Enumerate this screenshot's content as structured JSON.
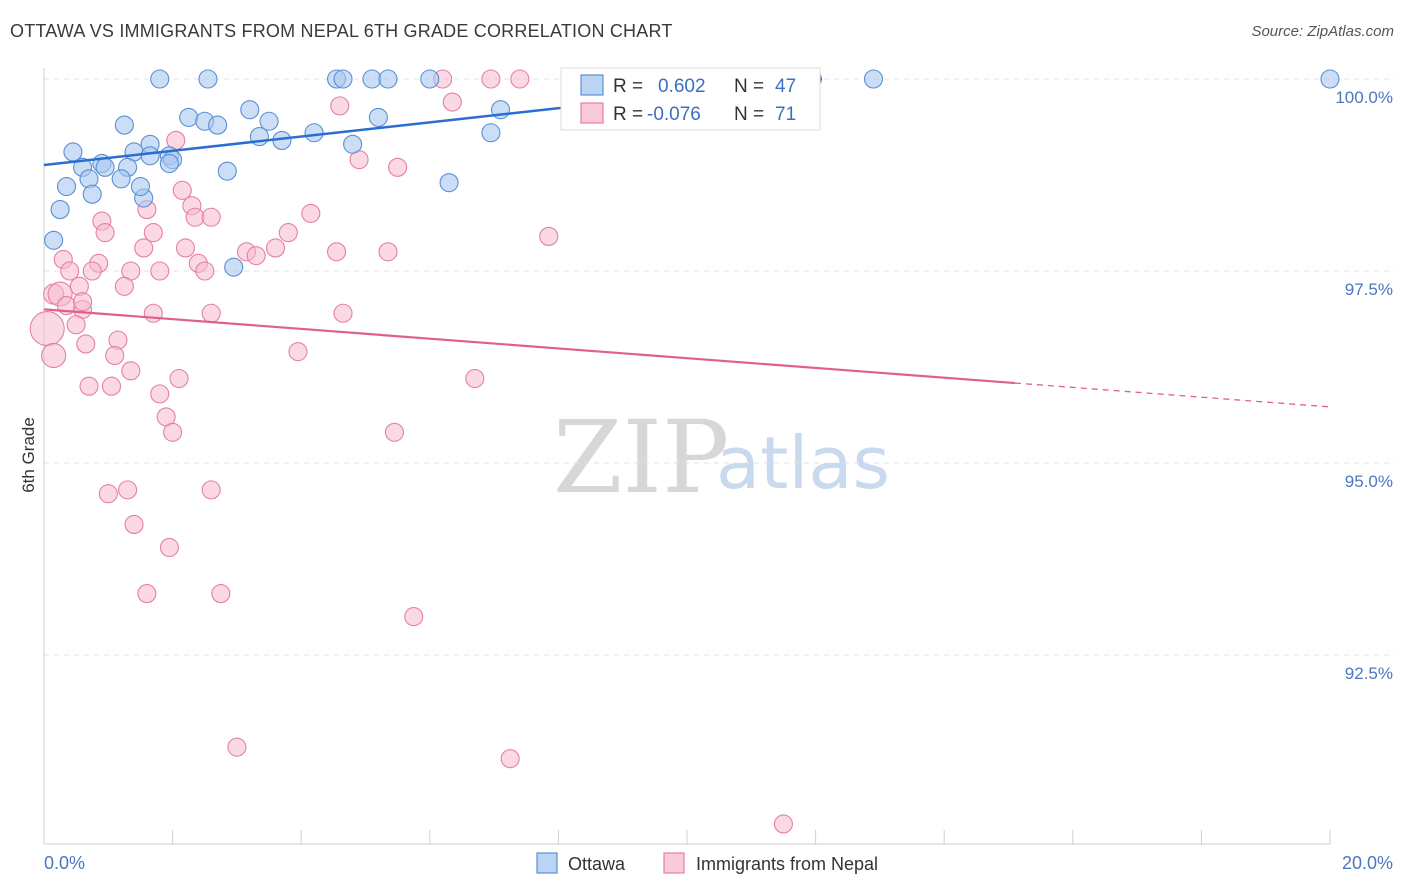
{
  "header": {
    "title": "OTTAWA VS IMMIGRANTS FROM NEPAL 6TH GRADE CORRELATION CHART",
    "source": "Source: ZipAtlas.com"
  },
  "watermark": {
    "zip": "ZIP",
    "atlas": "atlas"
  },
  "colors": {
    "blue_fill": "#a9c8ef",
    "blue_stroke": "#5a8fd6",
    "blue_line": "#2a6fd0",
    "pink_fill": "#f5b9cc",
    "pink_stroke": "#e680a3",
    "pink_line": "#e0608a",
    "grid": "#e2e2e2",
    "axis_text": "#4a78c0"
  },
  "legend": {
    "r_label": "R =",
    "n_label": "N =",
    "rows": [
      {
        "series": "Ottawa",
        "r": "0.602",
        "n": "47"
      },
      {
        "series": "Immigrants from Nepal",
        "r": "-0.076",
        "n": "71"
      }
    ]
  },
  "chart_data": {
    "type": "scatter",
    "title": "OTTAWA VS IMMIGRANTS FROM NEPAL 6TH GRADE CORRELATION CHART",
    "xlabel": "",
    "ylabel": "6th Grade",
    "xlim": [
      0,
      20
    ],
    "ylim": [
      90.2,
      100.3
    ],
    "x_tick_labels": [
      "0.0%",
      "20.0%"
    ],
    "y_ticks": [
      {
        "value": 100.0,
        "label": "100.0%"
      },
      {
        "value": 97.5,
        "label": "97.5%"
      },
      {
        "value": 95.0,
        "label": "95.0%"
      },
      {
        "value": 92.5,
        "label": "92.5%"
      }
    ],
    "legend_position": "bottom-center",
    "series": [
      {
        "name": "Ottawa",
        "color": "#5a8fd6",
        "trend": {
          "x": [
            0,
            12.1
          ],
          "y": [
            98.88,
            100.0
          ],
          "dashed_to_x": 12.1
        },
        "points": [
          [
            1.8,
            100.0
          ],
          [
            2.55,
            100.0
          ],
          [
            4.55,
            100.0
          ],
          [
            4.65,
            100.0
          ],
          [
            5.1,
            100.0
          ],
          [
            5.35,
            100.0
          ],
          [
            6.0,
            100.0
          ],
          [
            8.4,
            100.0
          ],
          [
            8.95,
            100.0
          ],
          [
            11.95,
            100.0
          ],
          [
            12.9,
            100.0
          ],
          [
            20.0,
            100.0
          ],
          [
            2.25,
            99.5
          ],
          [
            2.5,
            99.45
          ],
          [
            2.7,
            99.4
          ],
          [
            3.2,
            99.6
          ],
          [
            3.5,
            99.45
          ],
          [
            4.2,
            99.3
          ],
          [
            5.2,
            99.5
          ],
          [
            7.1,
            99.6
          ],
          [
            6.95,
            99.3
          ],
          [
            1.25,
            99.4
          ],
          [
            1.65,
            99.15
          ],
          [
            1.4,
            99.05
          ],
          [
            0.45,
            99.05
          ],
          [
            1.65,
            99.0
          ],
          [
            1.95,
            99.0
          ],
          [
            3.35,
            99.25
          ],
          [
            4.8,
            99.15
          ],
          [
            0.6,
            98.85
          ],
          [
            0.9,
            98.9
          ],
          [
            0.95,
            98.85
          ],
          [
            1.3,
            98.85
          ],
          [
            2.0,
            98.95
          ],
          [
            2.85,
            98.8
          ],
          [
            0.7,
            98.7
          ],
          [
            1.2,
            98.7
          ],
          [
            0.35,
            98.6
          ],
          [
            0.75,
            98.5
          ],
          [
            1.55,
            98.45
          ],
          [
            6.3,
            98.65
          ],
          [
            0.25,
            98.3
          ],
          [
            0.15,
            97.9
          ],
          [
            2.95,
            97.55
          ],
          [
            1.95,
            98.9
          ],
          [
            1.5,
            98.6
          ],
          [
            3.7,
            99.2
          ]
        ]
      },
      {
        "name": "Immigrants from Nepal",
        "color": "#e680a3",
        "trend": {
          "x": [
            0,
            20
          ],
          "y": [
            97.0,
            95.73
          ],
          "dashed_from_x": 15.1
        },
        "points": [
          [
            6.2,
            100.0
          ],
          [
            6.95,
            100.0
          ],
          [
            7.4,
            100.0
          ],
          [
            4.6,
            99.65
          ],
          [
            6.35,
            99.7
          ],
          [
            2.05,
            99.2
          ],
          [
            4.9,
            98.95
          ],
          [
            5.5,
            98.85
          ],
          [
            2.15,
            98.55
          ],
          [
            1.6,
            98.3
          ],
          [
            2.3,
            98.35
          ],
          [
            2.35,
            98.2
          ],
          [
            2.6,
            98.2
          ],
          [
            4.15,
            98.25
          ],
          [
            0.9,
            98.15
          ],
          [
            3.8,
            98.0
          ],
          [
            7.85,
            97.95
          ],
          [
            0.95,
            98.0
          ],
          [
            1.7,
            98.0
          ],
          [
            1.55,
            97.8
          ],
          [
            2.2,
            97.8
          ],
          [
            3.15,
            97.75
          ],
          [
            3.3,
            97.7
          ],
          [
            4.55,
            97.75
          ],
          [
            5.35,
            97.75
          ],
          [
            0.3,
            97.65
          ],
          [
            0.85,
            97.6
          ],
          [
            2.4,
            97.6
          ],
          [
            1.35,
            97.5
          ],
          [
            0.4,
            97.5
          ],
          [
            0.75,
            97.5
          ],
          [
            2.5,
            97.5
          ],
          [
            0.55,
            97.3
          ],
          [
            1.25,
            97.3
          ],
          [
            0.15,
            97.2
          ],
          [
            0.25,
            97.2
          ],
          [
            0.35,
            97.05
          ],
          [
            0.6,
            97.0
          ],
          [
            1.7,
            96.95
          ],
          [
            2.6,
            96.95
          ],
          [
            4.65,
            96.95
          ],
          [
            0.5,
            96.8
          ],
          [
            1.15,
            96.6
          ],
          [
            0.65,
            96.55
          ],
          [
            1.1,
            96.4
          ],
          [
            1.35,
            96.2
          ],
          [
            3.95,
            96.45
          ],
          [
            0.05,
            96.75
          ],
          [
            0.15,
            96.4
          ],
          [
            2.1,
            96.1
          ],
          [
            6.7,
            96.1
          ],
          [
            0.7,
            96.0
          ],
          [
            1.05,
            96.0
          ],
          [
            1.8,
            95.9
          ],
          [
            1.9,
            95.6
          ],
          [
            2.0,
            95.4
          ],
          [
            5.45,
            95.4
          ],
          [
            1.3,
            94.65
          ],
          [
            1.0,
            94.6
          ],
          [
            2.6,
            94.65
          ],
          [
            1.4,
            94.2
          ],
          [
            1.95,
            93.9
          ],
          [
            1.6,
            93.3
          ],
          [
            2.75,
            93.3
          ],
          [
            5.75,
            93.0
          ],
          [
            3.0,
            91.3
          ],
          [
            7.25,
            91.15
          ],
          [
            11.5,
            90.3
          ],
          [
            0.6,
            97.1
          ],
          [
            1.8,
            97.5
          ],
          [
            3.6,
            97.8
          ]
        ]
      }
    ]
  }
}
